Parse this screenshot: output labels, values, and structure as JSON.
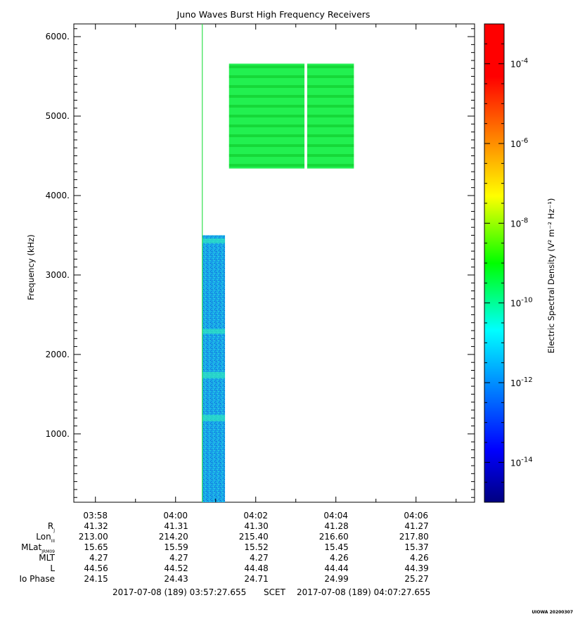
{
  "chart_data": {
    "type": "heatmap",
    "title": "Juno Waves Burst High Frequency Receivers",
    "ylabel": "Frequency (kHz)",
    "ylim": [
      140,
      6160
    ],
    "y_ticks": [
      1000,
      2000,
      3000,
      4000,
      5000,
      6000
    ],
    "y_tick_labels": [
      "1000.",
      "2000.",
      "3000.",
      "4000.",
      "5000.",
      "6000."
    ],
    "x_range_minutes": [
      "03:57:27.655",
      "04:07:27.655"
    ],
    "x_ticks": [
      "03:58",
      "04:00",
      "04:02",
      "04:04",
      "04:06"
    ],
    "colorbar": {
      "label": "Electric Spectral Density (V² m⁻² Hz⁻¹)",
      "scale": "log",
      "range_exp": [
        -15,
        -3
      ],
      "ticks": [
        {
          "base": "10",
          "exp": "-4"
        },
        {
          "base": "10",
          "exp": "-6"
        },
        {
          "base": "10",
          "exp": "-8"
        },
        {
          "base": "10",
          "exp": "-10"
        },
        {
          "base": "10",
          "exp": "-12"
        },
        {
          "base": "10",
          "exp": "-14"
        }
      ]
    },
    "blocks": [
      {
        "time_start": "04:00:40",
        "time_end": "04:01:14",
        "freq_low": 140,
        "freq_high": 3500,
        "log_density": -11.8
      },
      {
        "time_start": "04:01:20",
        "time_end": "04:03:13",
        "freq_low": 4340,
        "freq_high": 5660,
        "log_density": -9.6
      },
      {
        "time_start": "04:03:17",
        "time_end": "04:04:27",
        "freq_low": 4340,
        "freq_high": 5660,
        "log_density": -9.6
      }
    ],
    "line": {
      "time": "04:00:40",
      "log_density": -9.7
    },
    "ephemeris": {
      "labels": [
        {
          "main": "R",
          "sub": "J"
        },
        {
          "main": "Lon",
          "sub": "III"
        },
        {
          "main": "MLat",
          "sub": "JRM09"
        },
        {
          "main": "MLT",
          "sub": ""
        },
        {
          "main": "L",
          "sub": ""
        },
        {
          "main": "Io Phase",
          "sub": ""
        }
      ],
      "rows": [
        [
          "41.32",
          "41.31",
          "41.30",
          "41.28",
          "41.27"
        ],
        [
          "213.00",
          "214.20",
          "215.40",
          "216.60",
          "217.80"
        ],
        [
          "15.65",
          "15.59",
          "15.52",
          "15.45",
          "15.37"
        ],
        [
          "4.27",
          "4.27",
          "4.27",
          "4.26",
          "4.26"
        ],
        [
          "44.56",
          "44.52",
          "44.48",
          "44.44",
          "44.39"
        ],
        [
          "24.15",
          "24.43",
          "24.71",
          "24.99",
          "25.27"
        ]
      ]
    },
    "time_range_text": {
      "start": "2017-07-08 (189) 03:57:27.655",
      "mid": "SCET",
      "end": "2017-07-08 (189) 04:07:27.655"
    },
    "credit": "UIOWA 20200307"
  }
}
